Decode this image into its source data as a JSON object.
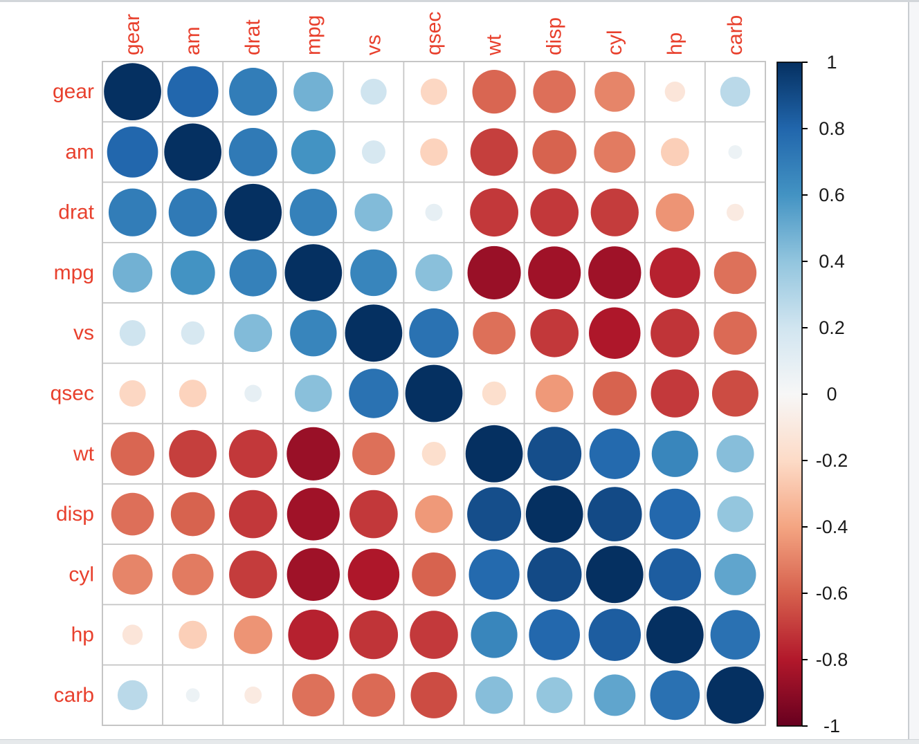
{
  "chart_data": {
    "type": "heatmap",
    "subtype": "correlation-circles",
    "title": "",
    "variables": [
      "gear",
      "am",
      "drat",
      "mpg",
      "vs",
      "qsec",
      "wt",
      "disp",
      "cyl",
      "hp",
      "carb"
    ],
    "matrix": [
      [
        1.0,
        0.794,
        0.7,
        0.48,
        0.206,
        -0.213,
        -0.583,
        -0.556,
        -0.493,
        -0.126,
        0.274
      ],
      [
        0.794,
        1.0,
        0.713,
        0.6,
        0.168,
        -0.23,
        -0.692,
        -0.591,
        -0.523,
        -0.243,
        0.058
      ],
      [
        0.7,
        0.713,
        1.0,
        0.681,
        0.44,
        0.091,
        -0.712,
        -0.71,
        -0.7,
        -0.449,
        -0.091
      ],
      [
        0.48,
        0.6,
        0.681,
        1.0,
        0.664,
        0.419,
        -0.868,
        -0.848,
        -0.852,
        -0.776,
        -0.551
      ],
      [
        0.206,
        0.168,
        0.44,
        0.664,
        1.0,
        0.745,
        -0.555,
        -0.71,
        -0.811,
        -0.723,
        -0.57
      ],
      [
        -0.213,
        -0.23,
        0.091,
        0.419,
        0.745,
        1.0,
        -0.175,
        -0.434,
        -0.591,
        -0.708,
        -0.656
      ],
      [
        -0.583,
        -0.692,
        -0.712,
        -0.868,
        -0.555,
        -0.175,
        1.0,
        0.888,
        0.782,
        0.659,
        0.428
      ],
      [
        -0.556,
        -0.591,
        -0.71,
        -0.848,
        -0.71,
        -0.434,
        0.888,
        1.0,
        0.902,
        0.791,
        0.395
      ],
      [
        -0.493,
        -0.523,
        -0.7,
        -0.852,
        -0.811,
        -0.591,
        0.782,
        0.902,
        1.0,
        0.832,
        0.527
      ],
      [
        -0.126,
        -0.243,
        -0.449,
        -0.776,
        -0.723,
        -0.708,
        0.659,
        0.791,
        0.832,
        1.0,
        0.75
      ],
      [
        0.274,
        0.058,
        -0.091,
        -0.551,
        -0.57,
        -0.656,
        0.428,
        0.395,
        0.527,
        0.75,
        1.0
      ]
    ],
    "value_range": [
      -1,
      1
    ],
    "legend_position": "right",
    "colorbar": {
      "tick_labels": [
        "1",
        "0.8",
        "0.6",
        "0.4",
        "0.2",
        "0",
        "-0.2",
        "-0.4",
        "-0.6",
        "-0.8",
        "-1"
      ],
      "tick_values": [
        1,
        0.8,
        0.6,
        0.4,
        0.2,
        0,
        -0.2,
        -0.4,
        -0.6,
        -0.8,
        -1
      ],
      "max_label": "1",
      "min_label": "-1"
    },
    "palette_neg_to_pos": [
      "#67001F",
      "#B2182B",
      "#D6604D",
      "#F4A582",
      "#FDDBC7",
      "#F7F7F7",
      "#D1E5F0",
      "#92C5DE",
      "#4393C3",
      "#2166AC",
      "#053061"
    ],
    "colors": {
      "axis_label": "#e8402d",
      "grid_line": "#c5c5c5",
      "legend_text": "#1a1a1a",
      "legend_border": "#000000",
      "background": "#ffffff"
    },
    "grid": true
  }
}
